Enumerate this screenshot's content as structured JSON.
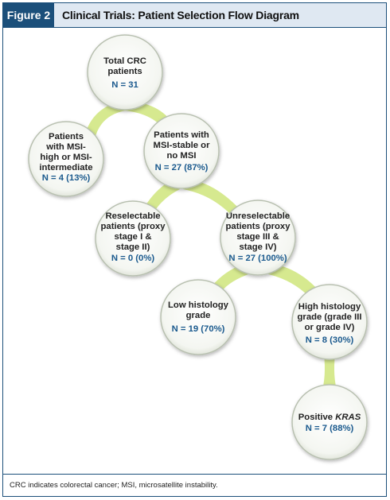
{
  "figure": {
    "label": "Figure 2",
    "title": "Clinical Trials: Patient Selection Flow Diagram",
    "footnote": "CRC indicates colorectal cancer; MSI, microsatellite instability."
  },
  "nodes": {
    "total": {
      "lines": [
        "Total CRC",
        "patients"
      ],
      "count": "N = 31"
    },
    "msi_high": {
      "lines": [
        "Patients",
        "with MSI-",
        "high or MSI-",
        "intermediate"
      ],
      "count": "N = 4 (13%)"
    },
    "msi_stable": {
      "lines": [
        "Patients with",
        "MSI-stable or",
        "no MSI"
      ],
      "count": "N = 27 (87%)"
    },
    "reselectable": {
      "lines": [
        "Reselectable",
        "patients (proxy",
        "stage I &",
        "stage II)"
      ],
      "count": "N = 0 (0%)"
    },
    "unreselectable": {
      "lines": [
        "Unreselectable",
        "patients (proxy",
        "stage III &",
        "stage IV)"
      ],
      "count": "N = 27 (100%)"
    },
    "low_grade": {
      "lines": [
        "Low histology",
        "grade"
      ],
      "count": "N = 19 (70%)"
    },
    "high_grade": {
      "lines": [
        "High histology",
        "grade (grade III",
        "or grade IV)"
      ],
      "count": "N = 8 (30%)"
    },
    "kras": {
      "lines": [
        "Positive",
        "KRAS"
      ],
      "count": "N = 7 (88%)"
    }
  },
  "colors": {
    "accent": "#1b4f7a",
    "header_bg": "#dfe8f2",
    "connector": "#d6e98f",
    "node_fill": "#f5f7f2",
    "node_ring": "#b8c0b0",
    "count_text": "#1b5a8e"
  }
}
